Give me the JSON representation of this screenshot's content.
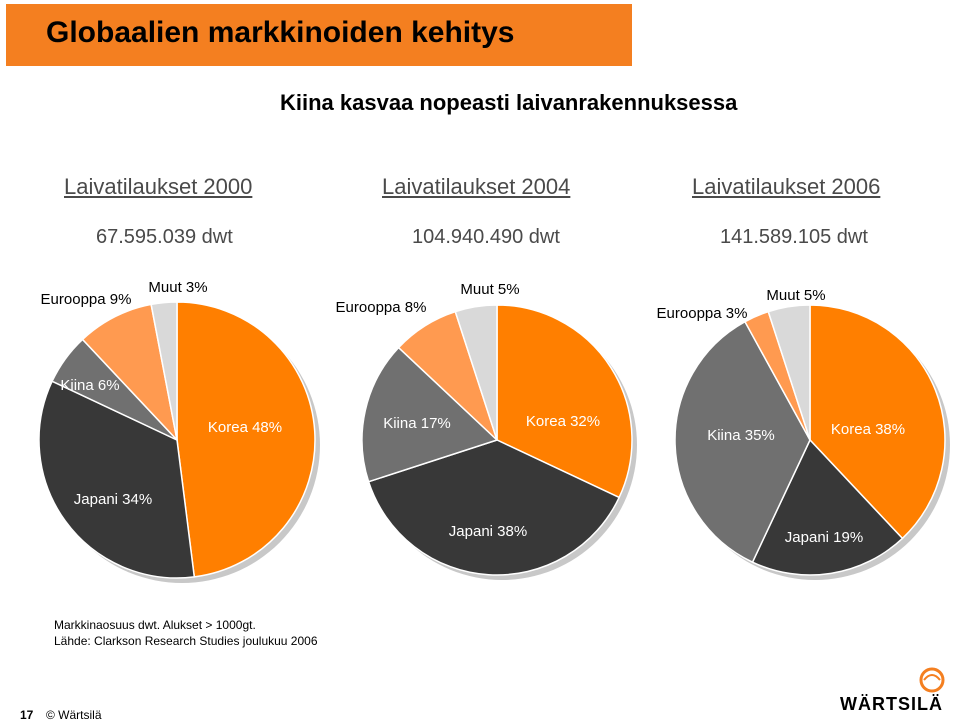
{
  "header": {
    "title": "Globaalien markkinoiden kehitys",
    "subtitle": "Kiina kasvaa nopeasti laivanrakennuksessa"
  },
  "chart_data": [
    {
      "type": "pie",
      "title": "Laivatilaukset 2000",
      "total_label": "67.595.039 dwt",
      "slices": [
        {
          "name": "Korea",
          "value": 48,
          "label": "Korea 48%"
        },
        {
          "name": "Japani",
          "value": 34,
          "label": "Japani 34%"
        },
        {
          "name": "Kiina",
          "value": 6,
          "label": "Kiina 6%"
        },
        {
          "name": "Eurooppa",
          "value": 9,
          "label": "Eurooppa 9%"
        },
        {
          "name": "Muut",
          "value": 3,
          "label": "Muut 3%"
        }
      ]
    },
    {
      "type": "pie",
      "title": "Laivatilaukset 2004",
      "total_label": "104.940.490 dwt",
      "slices": [
        {
          "name": "Korea",
          "value": 32,
          "label": "Korea 32%"
        },
        {
          "name": "Japani",
          "value": 38,
          "label": "Japani 38%"
        },
        {
          "name": "Kiina",
          "value": 17,
          "label": "Kiina 17%"
        },
        {
          "name": "Eurooppa",
          "value": 8,
          "label": "Eurooppa 8%"
        },
        {
          "name": "Muut",
          "value": 5,
          "label": "Muut 5%"
        }
      ]
    },
    {
      "type": "pie",
      "title": "Laivatilaukset 2006",
      "total_label": "141.589.105 dwt",
      "slices": [
        {
          "name": "Korea",
          "value": 38,
          "label": "Korea 38%"
        },
        {
          "name": "Japani",
          "value": 19,
          "label": "Japani 19%"
        },
        {
          "name": "Kiina",
          "value": 35,
          "label": "Kiina 35%"
        },
        {
          "name": "Eurooppa",
          "value": 3,
          "label": "Eurooppa 3%"
        },
        {
          "name": "Muut",
          "value": 5,
          "label": "Muut 5%"
        }
      ]
    }
  ],
  "colors": {
    "accent": "#f47f20",
    "Korea": "#ff7f00",
    "Japani": "#383838",
    "Kiina": "#707070",
    "Eurooppa": "#ff9a50",
    "Muut": "#d9d9d9",
    "shadow": "#c8c8c8"
  },
  "notes": {
    "line1": "Markkinaosuus dwt.  Alukset > 1000gt.",
    "line2": "Lähde: Clarkson Research Studies joulukuu 2006"
  },
  "footer": {
    "page_number": "17",
    "copyright": "© Wärtsilä"
  },
  "logo": {
    "text": "WÄRTSILÄ"
  }
}
